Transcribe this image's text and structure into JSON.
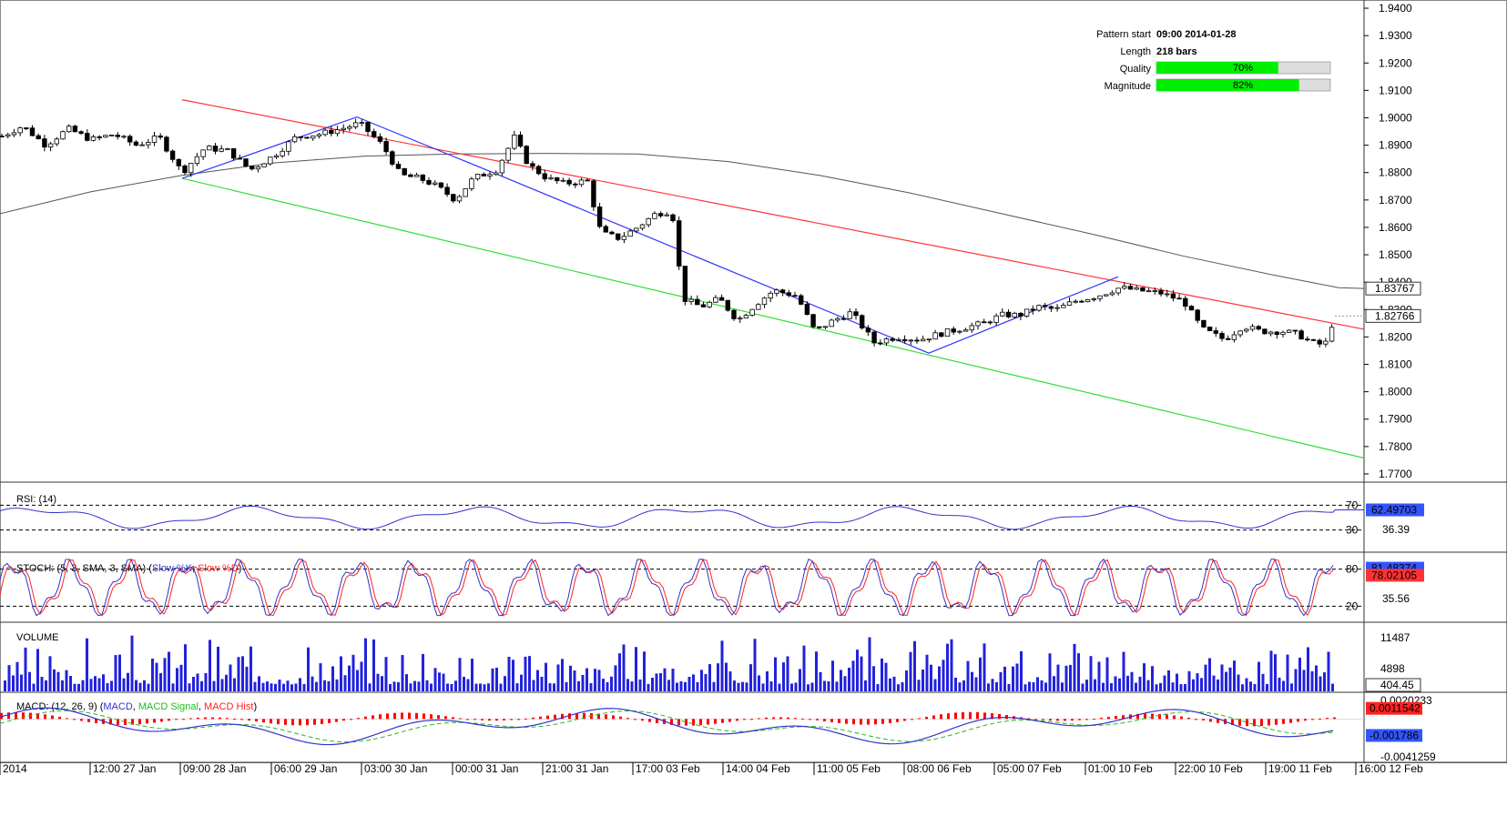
{
  "pattern_info": {
    "start_label": "Pattern start",
    "start_value": "09:00 2014-01-28",
    "length_label": "Length",
    "length_value": "218 bars",
    "quality_label": "Quality",
    "quality_value": "70%",
    "quality_fraction": 0.7,
    "magnitude_label": "Magnitude",
    "magnitude_value": "82%",
    "magnitude_fraction": 0.82
  },
  "colors": {
    "up_candle": "#ffffff",
    "down_candle": "#000000",
    "resistance": "#ff3333",
    "support": "#33dd33",
    "pattern_line": "#3333ff",
    "ma_line": "#555555",
    "rsi": "#3333cc",
    "stoch_k": "#3333cc",
    "stoch_d": "#ff2222",
    "volume": "#2222dd",
    "macd": "#3333cc",
    "macd_signal": "#22bb22",
    "macd_hist": "#ff0000",
    "bar_fill": "#00ee00"
  },
  "chart_data": {
    "type": "candlestick",
    "y_ticks": [
      "1.9400",
      "1.9300",
      "1.9200",
      "1.9100",
      "1.9000",
      "1.8900",
      "1.8800",
      "1.8700",
      "1.8600",
      "1.8500",
      "1.8400",
      "1.8300",
      "1.8200",
      "1.8100",
      "1.8000",
      "1.7900",
      "1.7800",
      "1.7700"
    ],
    "ylim": [
      1.767,
      1.943
    ],
    "x_labels": [
      "2014",
      "12:00 27 Jan",
      "09:00 28 Jan",
      "06:00 29 Jan",
      "03:00 30 Jan",
      "00:00 31 Jan",
      "21:00 31 Jan",
      "17:00 03 Feb",
      "14:00 04 Feb",
      "11:00 05 Feb",
      "08:00 06 Feb",
      "05:00 07 Feb",
      "01:00 10 Feb",
      "22:00 10 Feb",
      "19:00 11 Feb",
      "16:00 12 Feb"
    ],
    "last_price": "1.82766",
    "ma_last": "1.83767",
    "price_path": [
      [
        0,
        1.893
      ],
      [
        25,
        1.897
      ],
      [
        50,
        1.89
      ],
      [
        75,
        1.896
      ],
      [
        100,
        1.892
      ],
      [
        125,
        1.894
      ],
      [
        150,
        1.89
      ],
      [
        175,
        1.893
      ],
      [
        200,
        1.88
      ],
      [
        225,
        1.889
      ],
      [
        250,
        1.888
      ],
      [
        275,
        1.881
      ],
      [
        300,
        1.886
      ],
      [
        325,
        1.893
      ],
      [
        350,
        1.894
      ],
      [
        375,
        1.896
      ],
      [
        395,
        1.898
      ],
      [
        420,
        1.89
      ],
      [
        440,
        1.879
      ],
      [
        460,
        1.878
      ],
      [
        480,
        1.875
      ],
      [
        500,
        1.87
      ],
      [
        520,
        1.878
      ],
      [
        545,
        1.881
      ],
      [
        565,
        1.893
      ],
      [
        580,
        1.883
      ],
      [
        600,
        1.878
      ],
      [
        620,
        1.876
      ],
      [
        645,
        1.877
      ],
      [
        660,
        1.858
      ],
      [
        680,
        1.856
      ],
      [
        700,
        1.86
      ],
      [
        720,
        1.865
      ],
      [
        738,
        1.866
      ],
      [
        750,
        1.834
      ],
      [
        770,
        1.831
      ],
      [
        790,
        1.834
      ],
      [
        810,
        1.826
      ],
      [
        830,
        1.832
      ],
      [
        850,
        1.837
      ],
      [
        875,
        1.835
      ],
      [
        895,
        1.822
      ],
      [
        915,
        1.826
      ],
      [
        935,
        1.829
      ],
      [
        960,
        1.818
      ],
      [
        985,
        1.82
      ],
      [
        1010,
        1.819
      ],
      [
        1030,
        1.821
      ],
      [
        1055,
        1.823
      ],
      [
        1080,
        1.825
      ],
      [
        1100,
        1.828
      ],
      [
        1120,
        1.828
      ],
      [
        1140,
        1.831
      ],
      [
        1160,
        1.83
      ],
      [
        1180,
        1.833
      ],
      [
        1205,
        1.835
      ],
      [
        1230,
        1.838
      ],
      [
        1250,
        1.837
      ],
      [
        1275,
        1.836
      ],
      [
        1300,
        1.833
      ],
      [
        1320,
        1.823
      ],
      [
        1345,
        1.819
      ],
      [
        1365,
        1.824
      ],
      [
        1385,
        1.822
      ],
      [
        1410,
        1.822
      ],
      [
        1425,
        1.821
      ],
      [
        1440,
        1.818
      ],
      [
        1455,
        1.817
      ],
      [
        1466,
        1.8277
      ]
    ],
    "resistance_line": {
      "x": [
        200,
        1498
      ],
      "y": [
        1.9066,
        1.8228
      ]
    },
    "support_line": {
      "x": [
        200,
        1498
      ],
      "y": [
        1.8779,
        1.7758
      ]
    },
    "pattern_zigzag": [
      [
        200,
        1.8779
      ],
      [
        392,
        1.9003
      ],
      [
        545,
        1.8795
      ],
      [
        1020,
        1.8141
      ],
      [
        1228,
        1.842
      ]
    ],
    "ma_path": [
      [
        0,
        1.865
      ],
      [
        100,
        1.873
      ],
      [
        200,
        1.879
      ],
      [
        300,
        1.8835
      ],
      [
        400,
        1.886
      ],
      [
        500,
        1.8868
      ],
      [
        600,
        1.887
      ],
      [
        700,
        1.8868
      ],
      [
        800,
        1.884
      ],
      [
        900,
        1.879
      ],
      [
        1000,
        1.8725
      ],
      [
        1100,
        1.865
      ],
      [
        1200,
        1.8575
      ],
      [
        1300,
        1.8495
      ],
      [
        1400,
        1.8425
      ],
      [
        1470,
        1.838
      ],
      [
        1498,
        1.8377
      ]
    ],
    "rsi": {
      "label": "RSI: (14)",
      "ticks": [
        "70",
        "30"
      ],
      "levels": [
        70,
        30
      ],
      "right_value": "62.49703",
      "mid_value": "36.39",
      "last": 62.5
    },
    "stoch": {
      "label": "STOCH: (5, 3, SMA, 3, SMA)",
      "k_label": "Slow %K",
      "d_label": "Slow %D",
      "ticks": [
        "80",
        "20"
      ],
      "levels": [
        80,
        20
      ],
      "k_value": "81.48374",
      "d_value": "78.02105",
      "mid_value": "35.56"
    },
    "volume": {
      "label": "VOLUME",
      "ticks": [
        "11487",
        "4898"
      ],
      "last_value": "404.45",
      "max": 14000
    },
    "macd": {
      "label": "MACD: (12, 26, 9)",
      "macd_label": "MACD",
      "signal_label": "MACD Signal",
      "hist_label": "MACD Hist",
      "ticks": [
        "0.0020233",
        "-0.0041259"
      ],
      "macd_value": "0.0011542",
      "signal_value": "-0.001786",
      "ylim": [
        -0.0045,
        0.0026
      ]
    }
  }
}
